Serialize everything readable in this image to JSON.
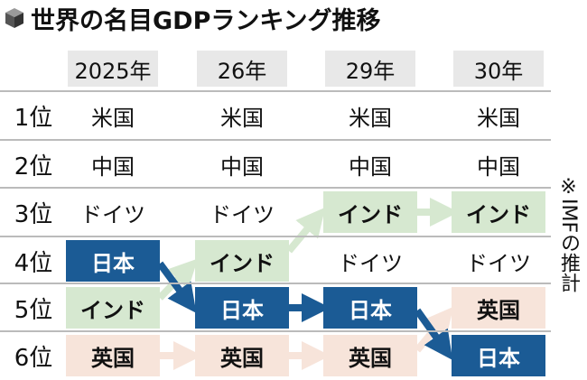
{
  "title": "世界の名目GDPランキング推移",
  "note": "※IMFの推計",
  "table": {
    "header": [
      "2025年",
      "26年",
      "29年",
      "30年"
    ],
    "rows": [
      {
        "rank": "1位",
        "cells": [
          "米国",
          "米国",
          "米国",
          "米国"
        ]
      },
      {
        "rank": "2位",
        "cells": [
          "中国",
          "中国",
          "中国",
          "中国"
        ]
      },
      {
        "rank": "3位",
        "cells": [
          "ドイツ",
          "ドイツ",
          "インド",
          "インド"
        ]
      },
      {
        "rank": "4位",
        "cells": [
          "日本",
          "インド",
          "ドイツ",
          "ドイツ"
        ]
      },
      {
        "rank": "5位",
        "cells": [
          "インド",
          "日本",
          "日本",
          "英国"
        ]
      },
      {
        "rank": "6位",
        "cells": [
          "英国",
          "英国",
          "英国",
          "日本"
        ]
      }
    ]
  }
}
